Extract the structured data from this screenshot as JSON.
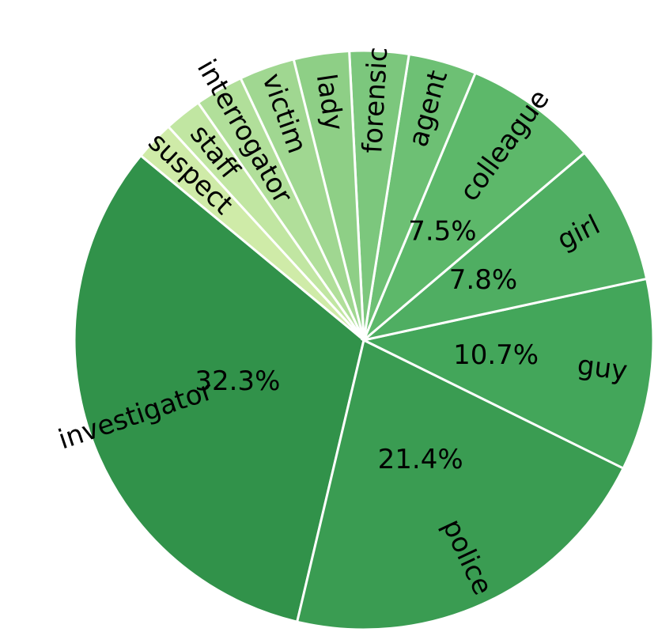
{
  "chart_data": {
    "type": "pie",
    "categories": [
      "investigator",
      "police",
      "guy",
      "girl",
      "colleague",
      "agent",
      "forensic",
      "lady",
      "victim",
      "interrogator",
      "staff",
      "suspect"
    ],
    "values": [
      32.3,
      21.4,
      10.7,
      7.8,
      7.5,
      3.8,
      3.3,
      3.1,
      3.1,
      2.7,
      2.1,
      2.2
    ],
    "value_labels": [
      "32.3%",
      "21.4%",
      "10.7%",
      "7.8%",
      "7.5%",
      null,
      null,
      null,
      null,
      null,
      null,
      null
    ],
    "colors": [
      "#31924a",
      "#3a9c52",
      "#43a65a",
      "#4fae62",
      "#5db86a",
      "#6dc074",
      "#7cc77d",
      "#8ecf86",
      "#a0d791",
      "#b1df9a",
      "#c1e6a2",
      "#cfeba8"
    ]
  }
}
